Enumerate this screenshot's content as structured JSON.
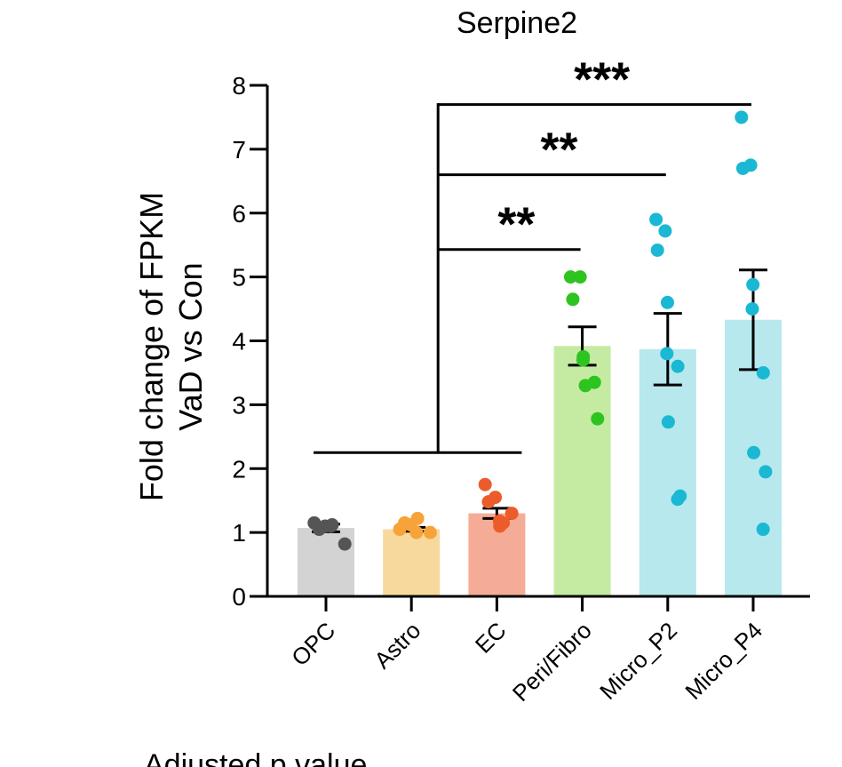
{
  "chart_data": {
    "type": "bar",
    "title": "Serpine2",
    "ylabel_lines": [
      "Fold change of FPKM",
      "VaD vs Con"
    ],
    "xlabel": "",
    "ylim": [
      0,
      8
    ],
    "yticks": [
      0,
      1,
      2,
      3,
      4,
      5,
      6,
      7,
      8
    ],
    "ytick_labels": [
      "0",
      "1",
      "2",
      "3",
      "4",
      "5",
      "6",
      "7",
      "8"
    ],
    "categories": [
      "OPC",
      "Astro",
      "EC",
      "Peri/Fibro",
      "Micro_P2",
      "Micro_P4"
    ],
    "means": [
      1.07,
      1.05,
      1.3,
      3.92,
      3.87,
      4.33
    ],
    "sem": [
      0.06,
      0.03,
      0.08,
      0.3,
      0.56,
      0.78
    ],
    "bar_colors": [
      "#d3d3d3",
      "#f7d99e",
      "#f5ac96",
      "#c5eba3",
      "#b6e8ee",
      "#b6e8ee"
    ],
    "point_colors": [
      "#555555",
      "#f7a33a",
      "#ec5c2a",
      "#2ec41f",
      "#1ab8d3",
      "#1ab8d3"
    ],
    "points": [
      [
        1.15,
        1.1,
        1.05,
        1.1,
        1.12,
        0.82
      ],
      [
        1.05,
        1.12,
        1.15,
        1.0,
        1.22,
        1.0
      ],
      [
        1.75,
        1.55,
        1.48,
        1.18,
        1.1,
        1.3,
        1.15
      ],
      [
        5.0,
        5.0,
        4.65,
        3.75,
        3.7,
        3.35,
        3.3,
        2.78
      ],
      [
        5.9,
        5.72,
        5.42,
        4.6,
        3.8,
        3.6,
        2.73,
        1.57,
        1.52
      ],
      [
        7.5,
        6.75,
        6.7,
        4.88,
        4.5,
        3.5,
        2.25,
        1.95,
        1.05
      ]
    ],
    "comparison": {
      "group_label": "OPC, Astro, EC",
      "line_y": 2.25,
      "items": [
        {
          "target": "Peri/Fibro",
          "label": "**",
          "level": 5.43
        },
        {
          "target": "Micro_P2",
          "label": "**",
          "level": 6.6
        },
        {
          "target": "Micro_P4",
          "label": "***",
          "level": 7.7
        }
      ]
    }
  },
  "footer_text": "Adjusted p value"
}
